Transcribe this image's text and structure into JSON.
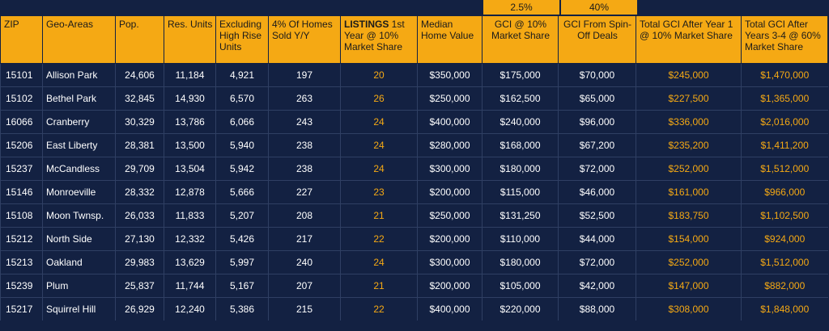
{
  "top_labels": {
    "gci_pct": "2.5%",
    "spinoff_pct": "40%"
  },
  "headers": {
    "zip": "ZIP",
    "geo": "Geo-Areas",
    "pop": "Pop.",
    "units": "Res. Units",
    "excl": "Excluding High Rise Units",
    "sold": "4% Of Homes Sold Y/Y",
    "listings_bold": "LISTINGS",
    "listings_rest": " 1st Year @ 10% Market Share",
    "median": "Median Home Value",
    "gci": "GCI @ 10% Market Share",
    "spinoff": "GCI From Spin-Off  Deals",
    "total1": "Total GCI After Year 1 @ 10% Market Share",
    "total34": "Total GCI After Years 3-4 @ 60% Market Share"
  },
  "rows": [
    {
      "zip": "15101",
      "area": "Allison Park",
      "pop": "24,606",
      "units": "11,184",
      "excl": "4,921",
      "sold": "197",
      "listings": "20",
      "median": "$350,000",
      "gci": "$175,000",
      "spinoff": "$70,000",
      "total1": "$245,000",
      "total34": "$1,470,000"
    },
    {
      "zip": "15102",
      "area": "Bethel Park",
      "pop": "32,845",
      "units": "14,930",
      "excl": "6,570",
      "sold": "263",
      "listings": "26",
      "median": "$250,000",
      "gci": "$162,500",
      "spinoff": "$65,000",
      "total1": "$227,500",
      "total34": "$1,365,000"
    },
    {
      "zip": "16066",
      "area": "Cranberry",
      "pop": "30,329",
      "units": "13,786",
      "excl": "6,066",
      "sold": "243",
      "listings": "24",
      "median": "$400,000",
      "gci": "$240,000",
      "spinoff": "$96,000",
      "total1": "$336,000",
      "total34": "$2,016,000"
    },
    {
      "zip": "15206",
      "area": "East Liberty",
      "pop": "28,381",
      "units": "13,500",
      "excl": "5,940",
      "sold": "238",
      "listings": "24",
      "median": "$280,000",
      "gci": "$168,000",
      "spinoff": "$67,200",
      "total1": "$235,200",
      "total34": "$1,411,200"
    },
    {
      "zip": "15237",
      "area": "McCandless",
      "pop": "29,709",
      "units": "13,504",
      "excl": "5,942",
      "sold": "238",
      "listings": "24",
      "median": "$300,000",
      "gci": "$180,000",
      "spinoff": "$72,000",
      "total1": "$252,000",
      "total34": "$1,512,000"
    },
    {
      "zip": "15146",
      "area": "Monroeville",
      "pop": "28,332",
      "units": "12,878",
      "excl": "5,666",
      "sold": "227",
      "listings": "23",
      "median": "$200,000",
      "gci": "$115,000",
      "spinoff": "$46,000",
      "total1": "$161,000",
      "total34": "$966,000"
    },
    {
      "zip": "15108",
      "area": "Moon Twnsp.",
      "pop": "26,033",
      "units": "11,833",
      "excl": "5,207",
      "sold": "208",
      "listings": "21",
      "median": "$250,000",
      "gci": "$131,250",
      "spinoff": "$52,500",
      "total1": "$183,750",
      "total34": "$1,102,500"
    },
    {
      "zip": "15212",
      "area": "North Side",
      "pop": "27,130",
      "units": "12,332",
      "excl": "5,426",
      "sold": "217",
      "listings": "22",
      "median": "$200,000",
      "gci": "$110,000",
      "spinoff": "$44,000",
      "total1": "$154,000",
      "total34": "$924,000"
    },
    {
      "zip": "15213",
      "area": "Oakland",
      "pop": "29,983",
      "units": "13,629",
      "excl": "5,997",
      "sold": "240",
      "listings": "24",
      "median": "$300,000",
      "gci": "$180,000",
      "spinoff": "$72,000",
      "total1": "$252,000",
      "total34": "$1,512,000"
    },
    {
      "zip": "15239",
      "area": "Plum",
      "pop": "25,837",
      "units": "11,744",
      "excl": "5,167",
      "sold": "207",
      "listings": "21",
      "median": "$200,000",
      "gci": "$105,000",
      "spinoff": "$42,000",
      "total1": "$147,000",
      "total34": "$882,000"
    },
    {
      "zip": "15217",
      "area": "Squirrel Hill",
      "pop": "26,929",
      "units": "12,240",
      "excl": "5,386",
      "sold": "215",
      "listings": "22",
      "median": "$400,000",
      "gci": "$220,000",
      "spinoff": "$88,000",
      "total1": "$308,000",
      "total34": "$1,848,000"
    }
  ],
  "colors": {
    "accent": "#f5a914",
    "background": "#132142"
  }
}
